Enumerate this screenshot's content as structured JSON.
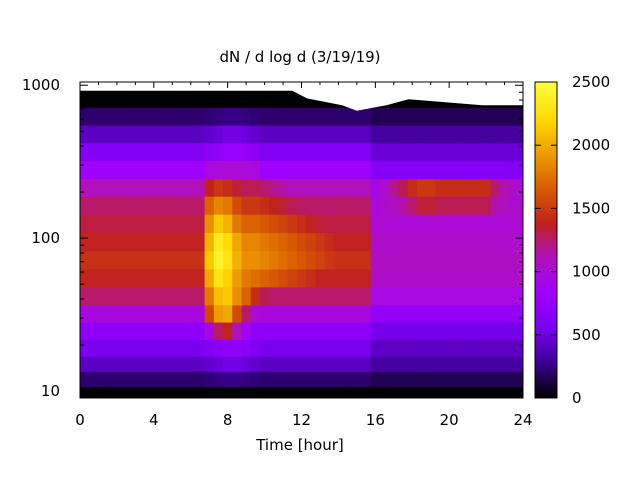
{
  "chart_data": {
    "type": "heatmap",
    "title": "dN / d log d (3/19/19)",
    "xlabel": "Time [hour]",
    "ylabel": "",
    "xlim": [
      0,
      24
    ],
    "ylim": [
      9,
      1050
    ],
    "y_scale": "log",
    "x_ticks": [
      {
        "value": 0,
        "label": "0"
      },
      {
        "value": 4,
        "label": "4"
      },
      {
        "value": 8,
        "label": "8"
      },
      {
        "value": 12,
        "label": "12"
      },
      {
        "value": 16,
        "label": "16"
      },
      {
        "value": 20,
        "label": "20"
      },
      {
        "value": 24,
        "label": "24"
      }
    ],
    "y_ticks": [
      {
        "value": 10,
        "label": "10"
      },
      {
        "value": 100,
        "label": "100"
      },
      {
        "value": 1000,
        "label": "1000"
      }
    ],
    "colorbar": {
      "range": [
        0,
        2500
      ],
      "ticks": [
        {
          "value": 0,
          "label": "0"
        },
        {
          "value": 500,
          "label": "500"
        },
        {
          "value": 1000,
          "label": "1000"
        },
        {
          "value": 1500,
          "label": "1500"
        },
        {
          "value": 2000,
          "label": "2000"
        },
        {
          "value": 2500,
          "label": "2500"
        }
      ],
      "palette": [
        "#000000",
        "#3b0090",
        "#7a00f0",
        "#a000ff",
        "#b010c0",
        "#c02020",
        "#d85a00",
        "#ee9a00",
        "#ffd800",
        "#ffff40"
      ]
    },
    "x": [
      0,
      0.5,
      1,
      1.5,
      2,
      2.5,
      3,
      3.5,
      4,
      4.5,
      5,
      5.5,
      6,
      6.5,
      7,
      7.5,
      8,
      8.5,
      9,
      9.5,
      10,
      10.5,
      11,
      11.5,
      12,
      12.5,
      13,
      13.5,
      14,
      14.5,
      15,
      15.5,
      16,
      16.5,
      17,
      17.5,
      18,
      18.5,
      19,
      19.5,
      20,
      20.5,
      21,
      21.5,
      22,
      22.5,
      23,
      23.5
    ],
    "y": [
      9.5,
      12,
      15,
      19,
      25,
      32,
      42,
      55,
      72,
      95,
      125,
      165,
      215,
      280,
      370,
      480,
      630,
      820
    ],
    "z": [
      [
        0,
        0,
        0,
        0,
        0,
        0,
        0,
        0,
        0,
        0,
        0,
        0,
        0,
        0,
        0,
        0,
        0,
        0,
        0,
        0,
        0,
        0,
        0,
        0,
        0,
        0,
        0,
        0,
        0,
        0,
        0,
        0,
        0,
        0,
        0,
        0,
        0,
        0,
        0,
        0,
        0,
        0,
        0,
        0,
        0,
        0,
        0,
        0
      ],
      [
        210,
        210,
        210,
        210,
        210,
        210,
        210,
        210,
        210,
        210,
        210,
        210,
        210,
        210,
        228,
        246,
        264,
        264,
        246,
        228,
        210,
        210,
        210,
        210,
        210,
        210,
        210,
        210,
        210,
        210,
        210,
        210,
        161,
        161,
        161,
        161,
        161,
        161,
        161,
        161,
        161,
        161,
        161,
        161,
        161,
        161,
        161,
        161
      ],
      [
        420,
        420,
        420,
        420,
        420,
        420,
        420,
        420,
        420,
        420,
        420,
        420,
        420,
        420,
        456,
        492,
        528,
        528,
        492,
        456,
        420,
        420,
        420,
        420,
        420,
        420,
        420,
        420,
        420,
        420,
        420,
        420,
        322,
        322,
        322,
        322,
        322,
        322,
        322,
        322,
        322,
        322,
        322,
        322,
        322,
        322,
        322,
        322
      ],
      [
        560,
        560,
        560,
        560,
        560,
        560,
        560,
        560,
        560,
        560,
        560,
        560,
        560,
        560,
        608,
        656,
        704,
        704,
        656,
        608,
        560,
        560,
        560,
        560,
        560,
        560,
        560,
        560,
        560,
        560,
        560,
        560,
        429,
        429,
        429,
        429,
        429,
        429,
        429,
        429,
        429,
        429,
        429,
        429,
        429,
        429,
        429,
        429
      ],
      [
        700,
        700,
        700,
        700,
        700,
        700,
        700,
        700,
        700,
        700,
        700,
        700,
        700,
        700,
        960,
        1280,
        1400,
        1120,
        880,
        700,
        700,
        700,
        700,
        700,
        700,
        700,
        700,
        700,
        700,
        700,
        700,
        700,
        536,
        536,
        536,
        536,
        536,
        536,
        536,
        536,
        536,
        536,
        536,
        536,
        536,
        536,
        536,
        536
      ],
      [
        980,
        980,
        980,
        980,
        980,
        980,
        980,
        980,
        980,
        980,
        980,
        980,
        980,
        980,
        1580,
        1950,
        2000,
        1600,
        1260,
        1000,
        980,
        980,
        980,
        980,
        980,
        980,
        980,
        980,
        980,
        980,
        980,
        980,
        751,
        751,
        751,
        751,
        751,
        751,
        751,
        751,
        751,
        751,
        751,
        751,
        751,
        751,
        751,
        751
      ],
      [
        1260,
        1260,
        1260,
        1260,
        1260,
        1260,
        1260,
        1260,
        1260,
        1260,
        1260,
        1260,
        1260,
        1260,
        1800,
        2100,
        2150,
        1900,
        1700,
        1450,
        1300,
        1260,
        1260,
        1260,
        1260,
        1260,
        1260,
        1260,
        1260,
        1260,
        1260,
        1260,
        966,
        966,
        966,
        966,
        966,
        966,
        966,
        966,
        966,
        966,
        966,
        966,
        966,
        966,
        966,
        966
      ],
      [
        1400,
        1400,
        1400,
        1400,
        1400,
        1400,
        1400,
        1400,
        1400,
        1400,
        1400,
        1400,
        1400,
        1400,
        2000,
        2300,
        2200,
        1950,
        1800,
        1750,
        1700,
        1650,
        1600,
        1550,
        1500,
        1450,
        1400,
        1400,
        1400,
        1400,
        1400,
        1400,
        1073,
        1073,
        1073,
        1073,
        1073,
        1073,
        1073,
        1073,
        1073,
        1073,
        1073,
        1073,
        1073,
        1073,
        1073,
        1073
      ],
      [
        1470,
        1470,
        1470,
        1470,
        1470,
        1470,
        1470,
        1470,
        1470,
        1470,
        1470,
        1470,
        1470,
        1470,
        2150,
        2400,
        2300,
        2050,
        1900,
        1900,
        1850,
        1800,
        1750,
        1700,
        1650,
        1600,
        1550,
        1500,
        1470,
        1470,
        1470,
        1470,
        1100,
        1100,
        1100,
        1100,
        1100,
        1100,
        1100,
        1100,
        1100,
        1100,
        1100,
        1100,
        1100,
        1100,
        1100,
        1100
      ],
      [
        1400,
        1400,
        1400,
        1400,
        1400,
        1400,
        1400,
        1400,
        1400,
        1400,
        1400,
        1400,
        1400,
        1400,
        2050,
        2350,
        2250,
        2000,
        1850,
        1850,
        1800,
        1750,
        1700,
        1650,
        1600,
        1550,
        1500,
        1450,
        1400,
        1400,
        1400,
        1400,
        1073,
        1073,
        1073,
        1073,
        1073,
        1073,
        1073,
        1073,
        1073,
        1073,
        1073,
        1073,
        1073,
        1073,
        1073,
        1073
      ],
      [
        1330,
        1330,
        1330,
        1330,
        1330,
        1330,
        1330,
        1330,
        1330,
        1330,
        1330,
        1330,
        1330,
        1330,
        1900,
        2150,
        2050,
        1800,
        1700,
        1700,
        1650,
        1600,
        1550,
        1500,
        1450,
        1400,
        1350,
        1330,
        1330,
        1330,
        1330,
        1330,
        1019,
        1019,
        1019,
        1019,
        1019,
        1019,
        1019,
        1019,
        1019,
        1019,
        1019,
        1019,
        1019,
        1019,
        1019,
        1019
      ],
      [
        1260,
        1260,
        1260,
        1260,
        1260,
        1260,
        1260,
        1260,
        1260,
        1260,
        1260,
        1260,
        1260,
        1260,
        1700,
        1850,
        1800,
        1600,
        1500,
        1500,
        1450,
        1400,
        1350,
        1300,
        1260,
        1260,
        1260,
        1260,
        1260,
        1260,
        1260,
        1260,
        1000,
        1050,
        1100,
        1150,
        1250,
        1350,
        1350,
        1300,
        1300,
        1300,
        1300,
        1300,
        1300,
        1150,
        1100,
        1050
      ],
      [
        1120,
        1120,
        1120,
        1120,
        1120,
        1120,
        1120,
        1120,
        1120,
        1120,
        1120,
        1120,
        1120,
        1120,
        1400,
        1500,
        1450,
        1350,
        1300,
        1300,
        1250,
        1200,
        1150,
        1120,
        1120,
        1120,
        1120,
        1120,
        1120,
        1120,
        1120,
        1120,
        950,
        1050,
        1200,
        1300,
        1450,
        1500,
        1500,
        1450,
        1450,
        1450,
        1450,
        1450,
        1450,
        1250,
        1150,
        1050
      ],
      [
        840,
        840,
        840,
        840,
        840,
        840,
        840,
        840,
        840,
        840,
        840,
        840,
        840,
        840,
        984,
        1016,
        1032,
        1032,
        1016,
        984,
        840,
        840,
        840,
        840,
        840,
        840,
        840,
        840,
        840,
        840,
        840,
        840,
        644,
        644,
        644,
        644,
        644,
        644,
        644,
        644,
        644,
        644,
        644,
        644,
        644,
        644,
        644,
        644
      ],
      [
        630,
        630,
        630,
        630,
        630,
        630,
        630,
        630,
        630,
        630,
        630,
        630,
        630,
        630,
        684,
        738,
        792,
        792,
        738,
        684,
        630,
        630,
        630,
        630,
        630,
        630,
        630,
        630,
        630,
        630,
        630,
        630,
        483,
        483,
        483,
        483,
        483,
        483,
        483,
        483,
        483,
        483,
        483,
        483,
        483,
        483,
        483,
        483
      ],
      [
        420,
        420,
        420,
        420,
        420,
        420,
        420,
        420,
        420,
        420,
        420,
        420,
        420,
        420,
        456,
        492,
        528,
        528,
        492,
        456,
        420,
        420,
        420,
        420,
        420,
        420,
        420,
        420,
        420,
        420,
        420,
        420,
        322,
        322,
        322,
        322,
        322,
        322,
        322,
        322,
        322,
        322,
        322,
        322,
        322,
        322,
        322,
        322
      ],
      [
        210,
        210,
        210,
        210,
        210,
        210,
        210,
        210,
        210,
        210,
        210,
        210,
        210,
        210,
        228,
        246,
        264,
        264,
        246,
        228,
        210,
        210,
        210,
        210,
        210,
        210,
        210,
        210,
        210,
        210,
        210,
        210,
        161,
        161,
        161,
        161,
        161,
        161,
        161,
        161,
        161,
        161,
        161,
        161,
        161,
        161,
        161,
        161
      ],
      [
        0,
        0,
        0,
        0,
        0,
        0,
        0,
        0,
        0,
        0,
        0,
        0,
        0,
        0,
        0,
        0,
        0,
        0,
        0,
        0,
        0,
        0,
        0,
        0,
        0,
        0,
        0,
        0,
        0,
        0,
        0,
        0,
        0,
        0,
        0,
        0,
        0,
        0,
        0,
        0,
        0,
        0,
        0,
        0,
        0,
        0,
        0,
        0
      ]
    ],
    "upper_data_limit": [
      {
        "x": 0,
        "y": 920
      },
      {
        "x": 11.5,
        "y": 920
      },
      {
        "x": 12.3,
        "y": 820
      },
      {
        "x": 14.2,
        "y": 740
      },
      {
        "x": 15,
        "y": 680
      },
      {
        "x": 16.6,
        "y": 740
      },
      {
        "x": 17.8,
        "y": 810
      },
      {
        "x": 21.8,
        "y": 740
      },
      {
        "x": 24,
        "y": 740
      }
    ],
    "grid": false,
    "legend": "colorbar-right"
  }
}
